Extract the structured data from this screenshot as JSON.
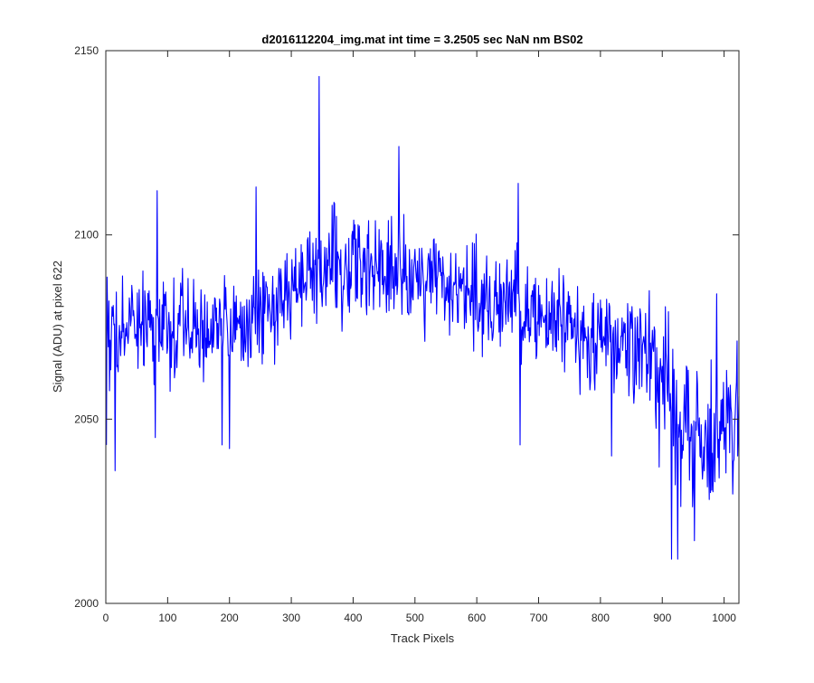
{
  "chart_data": {
    "type": "line",
    "title": "d2016112204_img.mat int time = 3.2505 sec  NaN nm BS02",
    "xlabel": "Track Pixels",
    "ylabel": "Signal (ADU) at pixel 622",
    "xlim": [
      0,
      1024
    ],
    "ylim": [
      2000,
      2150
    ],
    "xticks": [
      0,
      100,
      200,
      300,
      400,
      500,
      600,
      700,
      800,
      900,
      1000
    ],
    "yticks": [
      2000,
      2050,
      2100,
      2150
    ],
    "grid": false,
    "line_color": "#0000ff",
    "series": [
      {
        "x_start": 1,
        "x_step": 1,
        "trend_x": [
          0,
          80,
          150,
          230,
          300,
          350,
          420,
          480,
          550,
          620,
          680,
          750,
          820,
          870,
          900,
          940,
          980,
          1024
        ],
        "trend_y": [
          2074,
          2076,
          2074,
          2075,
          2086,
          2092,
          2091,
          2089,
          2087,
          2083,
          2080,
          2075,
          2072,
          2068,
          2062,
          2048,
          2046,
          2050
        ],
        "noise_amplitude": 11,
        "noise_amplitude_tail": 15,
        "spikes": [
          {
            "x": 1,
            "y": 2043
          },
          {
            "x": 15,
            "y": 2036
          },
          {
            "x": 80,
            "y": 2045
          },
          {
            "x": 83,
            "y": 2112
          },
          {
            "x": 188,
            "y": 2043
          },
          {
            "x": 200,
            "y": 2042
          },
          {
            "x": 243,
            "y": 2113
          },
          {
            "x": 345,
            "y": 2143
          },
          {
            "x": 474,
            "y": 2124
          },
          {
            "x": 670,
            "y": 2043
          },
          {
            "x": 667,
            "y": 2114
          },
          {
            "x": 818,
            "y": 2040
          },
          {
            "x": 895,
            "y": 2037
          },
          {
            "x": 915,
            "y": 2012
          },
          {
            "x": 925,
            "y": 2012
          },
          {
            "x": 952,
            "y": 2017
          },
          {
            "x": 988,
            "y": 2084
          },
          {
            "x": 1022,
            "y": 2040
          }
        ]
      }
    ]
  }
}
